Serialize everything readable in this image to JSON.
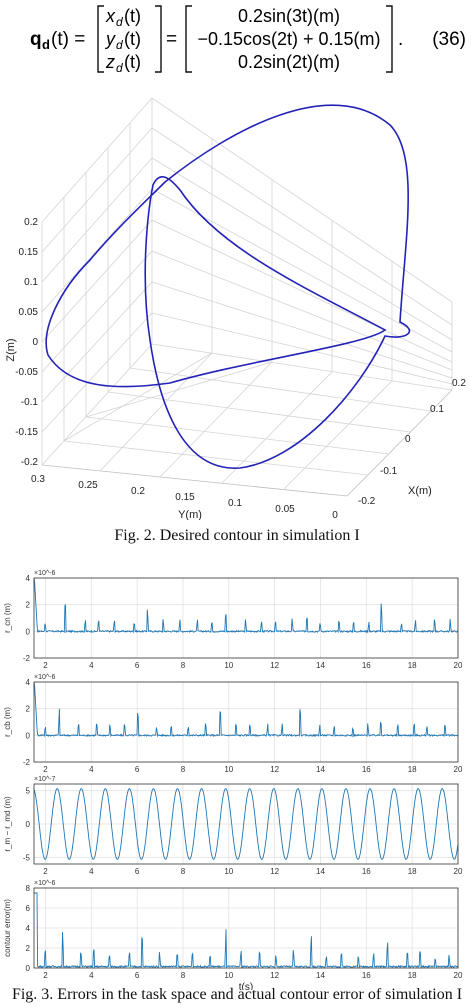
{
  "equation": {
    "lhs_symbol": "q",
    "lhs_sub": "d",
    "lhs_arg": "(t) =",
    "vec": [
      "x",
      "y",
      "z"
    ],
    "vec_sub": "d",
    "vec_arg": "(t)",
    "rhs": [
      "0.2sin(3t)(m)",
      "−0.15cos(2t) + 0.15(m)",
      "0.2sin(2t)(m)"
    ],
    "eq_sign": "=",
    "period": ".",
    "number": "(36)"
  },
  "figure2": {
    "caption": "Fig. 2.   Desired contour in simulation I",
    "line_color": "#2323b8",
    "z_axis_label": "Z(m)",
    "y_axis_label": "Y(m)",
    "x_axis_label": "X(m)",
    "z_ticks": [
      "0.2",
      "0.15",
      "0.1",
      "0.05",
      "0",
      "-0.05",
      "-0.1",
      "-0.15",
      "-0.2"
    ],
    "y_ticks": [
      "0.3",
      "0.25",
      "0.2",
      "0.15",
      "0.1",
      "0.05",
      "0"
    ],
    "x_ticks": [
      "0.2",
      "0.1",
      "0",
      "-0.1",
      "-0.2"
    ]
  },
  "chart_data": [
    {
      "type": "line",
      "ylabel": "r_cn (m)",
      "y_exponent": "×10^-6",
      "ylim": [
        -2,
        4
      ],
      "yticks": [
        "-2",
        "0",
        "2",
        "4"
      ],
      "xlim": [
        1.5,
        20
      ],
      "xticks": [
        "2",
        "4",
        "6",
        "8",
        "10",
        "12",
        "14",
        "16",
        "18",
        "20"
      ],
      "color": "#1f77b4"
    },
    {
      "type": "line",
      "ylabel": "r_cb (m)",
      "y_exponent": "×10^-6",
      "ylim": [
        -2,
        4
      ],
      "yticks": [
        "-2",
        "0",
        "2",
        "4"
      ],
      "xlim": [
        1.5,
        20
      ],
      "xticks": [
        "2",
        "4",
        "6",
        "8",
        "10",
        "12",
        "14",
        "16",
        "18",
        "20"
      ],
      "color": "#1f77b4"
    },
    {
      "type": "line",
      "ylabel": "r_m − r_md (m)",
      "y_exponent": "×10^-7",
      "ylim": [
        -6,
        6
      ],
      "yticks": [
        "-5",
        "0",
        "5"
      ],
      "xlim": [
        1.5,
        20
      ],
      "xticks": [
        "2",
        "4",
        "6",
        "8",
        "10",
        "12",
        "14",
        "16",
        "18",
        "20"
      ],
      "color": "#1f77b4"
    },
    {
      "type": "line",
      "ylabel": "contour error(m)",
      "y_exponent": "×10^-6",
      "ylim": [
        0,
        8
      ],
      "yticks": [
        "0",
        "2",
        "4",
        "6",
        "8"
      ],
      "xlim": [
        1.5,
        20
      ],
      "xticks": [
        "2",
        "4",
        "6",
        "8",
        "10",
        "12",
        "14",
        "16",
        "18",
        "20"
      ],
      "xlabel": "t(s)",
      "color": "#1f77b4"
    }
  ],
  "figure3": {
    "caption": "Fig. 3.   Errors in the task space and actual contour error of simulation I"
  }
}
